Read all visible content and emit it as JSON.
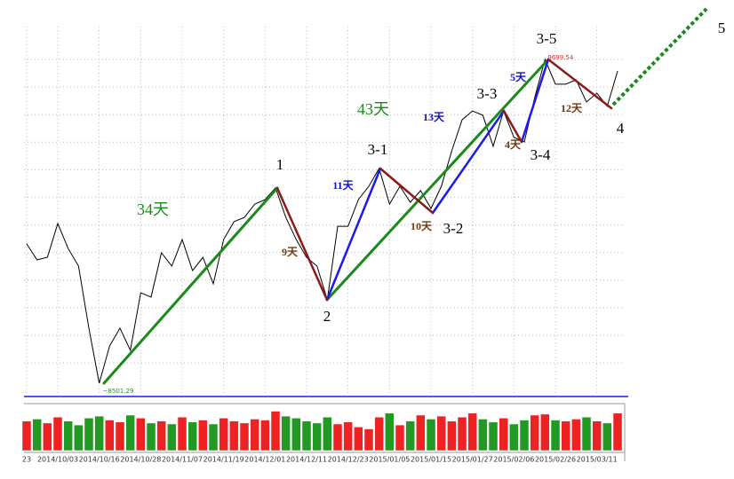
{
  "chart_data": {
    "type": "line",
    "categories": [
      "23",
      null,
      null,
      "2014/10/03",
      null,
      null,
      null,
      "2014/10/16",
      null,
      null,
      null,
      "2014/10/28",
      null,
      null,
      null,
      "2014/11/07",
      null,
      null,
      null,
      "2014/11/19",
      null,
      null,
      null,
      "2014/12/01",
      null,
      null,
      null,
      "2014/12/11",
      null,
      null,
      null,
      "2014/12/23",
      null,
      null,
      null,
      "2015/01/05",
      null,
      null,
      null,
      "2015/01/15",
      null,
      null,
      null,
      "2015/01/27",
      null,
      null,
      null,
      "2015/02/06",
      null,
      null,
      null,
      "2015/02/26",
      null,
      null,
      null,
      "2015/03/11",
      null,
      null
    ],
    "series": [
      {
        "color": "#000000",
        "values": [
          9017,
          8958,
          8967,
          9092,
          9000,
          8935,
          8705,
          8501.29,
          8639,
          8705,
          8623,
          8836,
          8820,
          8984,
          8935,
          9033,
          8918,
          8967,
          8869,
          9033,
          9099,
          9115,
          9164,
          9181,
          9224,
          9115,
          9033,
          8967,
          8935,
          8810,
          9082,
          9082,
          9181,
          9230,
          9296,
          9164,
          9230,
          9171,
          9214,
          9148,
          9230,
          9361,
          9476,
          9509,
          9493,
          9378,
          9509,
          9411,
          9394,
          9558,
          9699.54,
          9608,
          9608,
          9624,
          9542,
          9575,
          9526,
          9657
        ]
      }
    ],
    "ylim": [
      8452,
      9821
    ],
    "price_labels": [
      {
        "text": "~8501.29",
        "color": "#2e8b2e"
      },
      {
        "text": "9699.54",
        "color": "#e03030"
      }
    ],
    "volume": {
      "up_color": "#ee2222",
      "down_color": "#229922",
      "ylim": [
        0,
        45
      ],
      "values": [
        30,
        32,
        28,
        34,
        30,
        26,
        33,
        35,
        31,
        29,
        36,
        33,
        28,
        30,
        27,
        34,
        29,
        31,
        27,
        33,
        30,
        28,
        32,
        31,
        40,
        35,
        33,
        30,
        28,
        34,
        27,
        29,
        24,
        22,
        34,
        38,
        26,
        30,
        36,
        32,
        35,
        30,
        34,
        38,
        32,
        29,
        33,
        27,
        31,
        36,
        37,
        31,
        30,
        32,
        34,
        30,
        28,
        38
      ]
    },
    "annotations": [
      {
        "text": "1",
        "color": "#000000"
      },
      {
        "text": "2",
        "color": "#000000"
      },
      {
        "text": "3-1",
        "color": "#000000"
      },
      {
        "text": "3-2",
        "color": "#000000"
      },
      {
        "text": "3-3",
        "color": "#000000"
      },
      {
        "text": "3-4",
        "color": "#000000"
      },
      {
        "text": "3-5",
        "color": "#000000"
      },
      {
        "text": "4",
        "color": "#000000"
      },
      {
        "text": "5",
        "color": "#000000"
      },
      {
        "text": "34天",
        "color": "#1a8a1a"
      },
      {
        "text": "43天",
        "color": "#1a8a1a"
      },
      {
        "text": "9天",
        "color": "#6b3a10"
      },
      {
        "text": "11天",
        "color": "#1010cc"
      },
      {
        "text": "10天",
        "color": "#6b3a10"
      },
      {
        "text": "13天",
        "color": "#1010cc"
      },
      {
        "text": "4天",
        "color": "#6b3a10"
      },
      {
        "text": "5天",
        "color": "#1010cc"
      },
      {
        "text": "12天",
        "color": "#6b3a10"
      }
    ]
  }
}
